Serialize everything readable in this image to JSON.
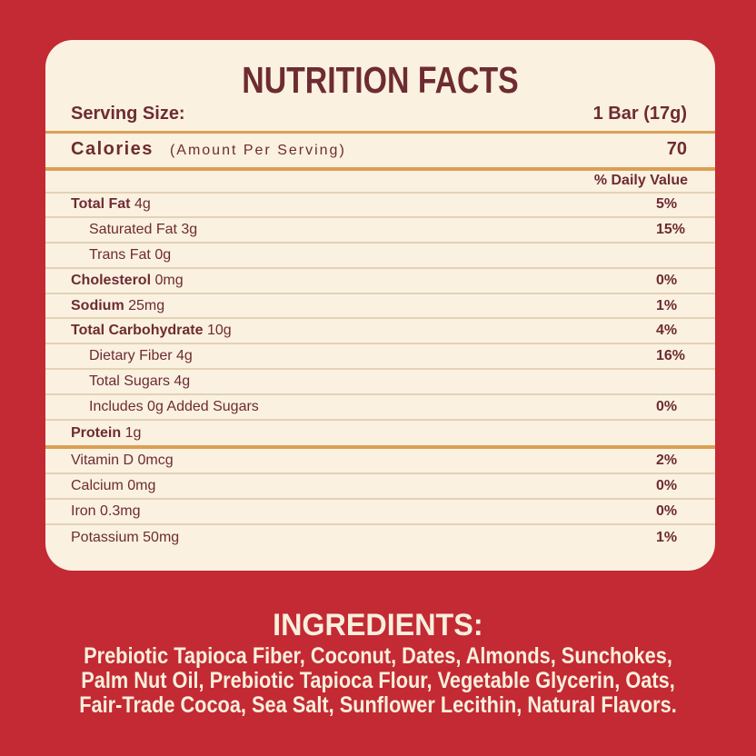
{
  "colors": {
    "background": "#C32A33",
    "card": "#FAF1E1",
    "text": "#6E2B32",
    "divider": "#E4D2B4",
    "accent_line": "#DC9F52",
    "ingredients_text": "#F8EFDD"
  },
  "label": {
    "title": "NUTRITION FACTS",
    "serving_size_label": "Serving Size:",
    "serving_size_value": "1 Bar (17g)",
    "calories_label": "Calories",
    "calories_note": "(Amount Per Serving)",
    "calories_value": "70",
    "daily_value_header": "% Daily Value",
    "rows": [
      {
        "name": "Total Fat",
        "amount": "4g",
        "dv": "5%"
      },
      {
        "name": "Saturated Fat",
        "amount": "3g",
        "dv": "15%"
      },
      {
        "name": "Trans Fat",
        "amount": "0g",
        "dv": ""
      },
      {
        "name": "Cholesterol",
        "amount": "0mg",
        "dv": "0%"
      },
      {
        "name": "Sodium",
        "amount": "25mg",
        "dv": "1%"
      },
      {
        "name": "Total Carbohydrate",
        "amount": "10g",
        "dv": "4%"
      },
      {
        "name": "Dietary Fiber",
        "amount": "4g",
        "dv": "16%"
      },
      {
        "name": "Total Sugars",
        "amount": "4g",
        "dv": ""
      },
      {
        "name": "Includes 0g Added Sugars",
        "amount": "",
        "dv": "0%"
      },
      {
        "name": "Protein",
        "amount": "1g",
        "dv": ""
      }
    ],
    "vitamin_rows": [
      {
        "name": "Vitamin D",
        "amount": "0mcg",
        "dv": "2%"
      },
      {
        "name": "Calcium",
        "amount": "0mg",
        "dv": "0%"
      },
      {
        "name": "Iron",
        "amount": "0.3mg",
        "dv": "0%"
      },
      {
        "name": "Potassium",
        "amount": "50mg",
        "dv": "1%"
      }
    ]
  },
  "ingredients": {
    "title": "INGREDIENTS:",
    "lines": [
      "Prebiotic Tapioca Fiber, Coconut, Dates, Almonds, Sunchokes,",
      "Palm Nut Oil, Prebiotic Tapioca Flour, Vegetable Glycerin, Oats,",
      "Fair-Trade Cocoa, Sea Salt, Sunflower Lecithin, Natural Flavors."
    ]
  }
}
